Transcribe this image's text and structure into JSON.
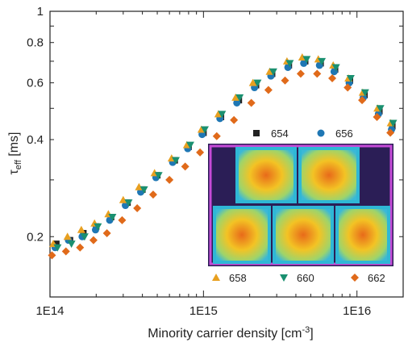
{
  "chart_data": {
    "type": "scatter",
    "xlabel": "Minority carrier density [cm",
    "xlabel_sup": "-3",
    "xlabel_end": "]",
    "ylabel_main": "τ",
    "ylabel_sub": "eff",
    "ylabel_unit": " [ms]",
    "xscale": "log",
    "yscale": "log",
    "xlim": [
      100000000000000.0,
      2e+16
    ],
    "ylim": [
      0.13,
      1.0
    ],
    "xticks": [
      {
        "value": 100000000000000.0,
        "label": "1E14"
      },
      {
        "value": 1000000000000000.0,
        "label": "1E15"
      },
      {
        "value": 1e+16,
        "label": "1E16"
      }
    ],
    "yticks": [
      {
        "value": 0.2,
        "label": "0.2"
      },
      {
        "value": 0.4,
        "label": "0.4"
      },
      {
        "value": 0.6,
        "label": "0.6"
      },
      {
        "value": 0.8,
        "label": "0.8"
      },
      {
        "value": 1.0,
        "label": "1"
      }
    ],
    "series": [
      {
        "name": "654",
        "color": "#222222",
        "marker": "square",
        "x": [
          110000000000000.0,
          135000000000000.0,
          165000000000000.0,
          200000000000000.0,
          250000000000000.0,
          320000000000000.0,
          400000000000000.0,
          500000000000000.0,
          650000000000000.0,
          800000000000000.0,
          1000000000000000.0,
          1300000000000000.0,
          1700000000000000.0,
          2200000000000000.0,
          2800000000000000.0,
          3600000000000000.0,
          4600000000000000.0,
          5800000000000000.0,
          7200000000000000.0,
          9000000000000000.0,
          1.12e+16,
          1.4e+16,
          1.7e+16
        ],
        "y": [
          0.19,
          0.195,
          0.205,
          0.215,
          0.23,
          0.255,
          0.28,
          0.31,
          0.345,
          0.38,
          0.42,
          0.47,
          0.53,
          0.59,
          0.64,
          0.68,
          0.7,
          0.69,
          0.66,
          0.61,
          0.55,
          0.49,
          0.44
        ]
      },
      {
        "name": "656",
        "color": "#1f77b4",
        "marker": "circle",
        "x": [
          108000000000000.0,
          132000000000000.0,
          162000000000000.0,
          198000000000000.0,
          245000000000000.0,
          310000000000000.0,
          390000000000000.0,
          490000000000000.0,
          630000000000000.0,
          790000000000000.0,
          980000000000000.0,
          1280000000000000.0,
          1650000000000000.0,
          2150000000000000.0,
          2750000000000000.0,
          3550000000000000.0,
          4500000000000000.0,
          5700000000000000.0,
          7100000000000000.0,
          8900000000000000.0,
          1.1e+16,
          1.38e+16,
          1.68e+16
        ],
        "y": [
          0.185,
          0.195,
          0.2,
          0.21,
          0.225,
          0.25,
          0.275,
          0.305,
          0.34,
          0.375,
          0.415,
          0.465,
          0.52,
          0.58,
          0.63,
          0.67,
          0.69,
          0.68,
          0.65,
          0.6,
          0.54,
          0.48,
          0.43
        ]
      },
      {
        "name": "658",
        "color": "#e8a020",
        "marker": "triangle-up",
        "x": [
          105000000000000.0,
          130000000000000.0,
          160000000000000.0,
          195000000000000.0,
          240000000000000.0,
          300000000000000.0,
          380000000000000.0,
          480000000000000.0,
          620000000000000.0,
          780000000000000.0,
          970000000000000.0,
          1250000000000000.0,
          1620000000000000.0,
          2100000000000000.0,
          2700000000000000.0,
          3500000000000000.0,
          4400000000000000.0,
          5600000000000000.0,
          7000000000000000.0,
          8800000000000000.0,
          1.09e+16,
          1.36e+16,
          1.66e+16
        ],
        "y": [
          0.19,
          0.2,
          0.21,
          0.22,
          0.235,
          0.26,
          0.285,
          0.315,
          0.35,
          0.385,
          0.43,
          0.48,
          0.54,
          0.6,
          0.65,
          0.7,
          0.72,
          0.71,
          0.68,
          0.62,
          0.56,
          0.5,
          0.45
        ]
      },
      {
        "name": "660",
        "color": "#1a9070",
        "marker": "triangle-down",
        "x": [
          112000000000000.0,
          138000000000000.0,
          168000000000000.0,
          205000000000000.0,
          255000000000000.0,
          325000000000000.0,
          410000000000000.0,
          510000000000000.0,
          660000000000000.0,
          820000000000000.0,
          1020000000000000.0,
          1320000000000000.0,
          1720000000000000.0,
          2250000000000000.0,
          2850000000000000.0,
          3650000000000000.0,
          4700000000000000.0,
          5900000000000000.0,
          7300000000000000.0,
          9100000000000000.0,
          1.13e+16,
          1.42e+16,
          1.72e+16
        ],
        "y": [
          0.185,
          0.19,
          0.2,
          0.215,
          0.23,
          0.255,
          0.28,
          0.31,
          0.345,
          0.385,
          0.43,
          0.48,
          0.54,
          0.6,
          0.65,
          0.69,
          0.71,
          0.7,
          0.67,
          0.62,
          0.56,
          0.5,
          0.45
        ]
      },
      {
        "name": "662",
        "color": "#e06a1a",
        "marker": "diamond",
        "x": [
          103000000000000.0,
          127000000000000.0,
          157000000000000.0,
          192000000000000.0,
          235000000000000.0,
          295000000000000.0,
          370000000000000.0,
          470000000000000.0,
          600000000000000.0,
          760000000000000.0,
          950000000000000.0,
          1220000000000000.0,
          1580000000000000.0,
          2050000000000000.0,
          2650000000000000.0,
          3400000000000000.0,
          4300000000000000.0,
          5500000000000000.0,
          6900000000000000.0,
          8700000000000000.0,
          1.08e+16,
          1.35e+16,
          1.65e+16
        ],
        "y": [
          0.175,
          0.18,
          0.185,
          0.195,
          0.205,
          0.225,
          0.245,
          0.27,
          0.3,
          0.33,
          0.365,
          0.41,
          0.46,
          0.52,
          0.57,
          0.61,
          0.64,
          0.64,
          0.62,
          0.58,
          0.53,
          0.47,
          0.42
        ]
      }
    ],
    "legend_top": [
      "654",
      "656"
    ],
    "legend_bottom": [
      "658",
      "660",
      "662"
    ]
  }
}
